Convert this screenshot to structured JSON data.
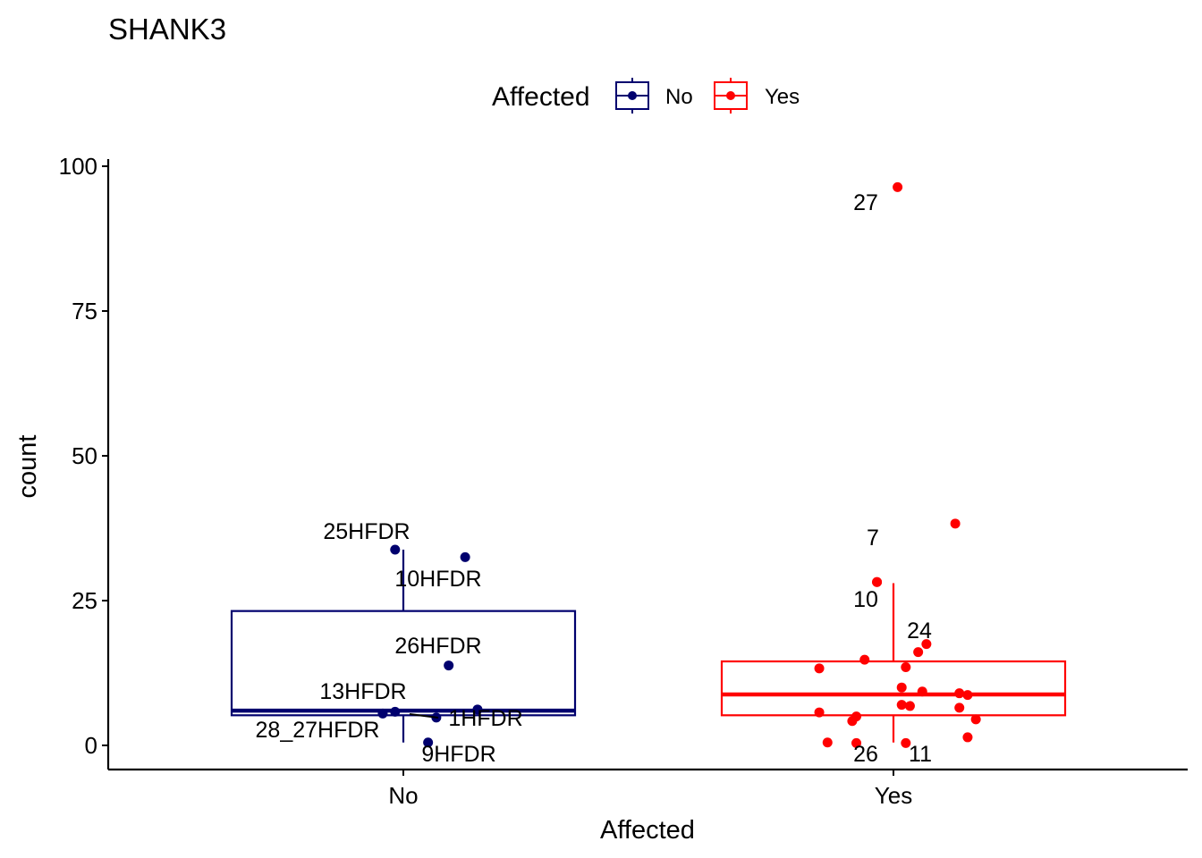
{
  "chart_data": {
    "type": "boxplot",
    "title": "SHANK3",
    "xlabel": "Affected",
    "ylabel": "count",
    "ylim": [
      -4,
      102
    ],
    "yticks": [
      0,
      25,
      50,
      75,
      100
    ],
    "grid": false,
    "legend": {
      "title": "Affected",
      "placement": "top",
      "entries": [
        {
          "label": "No",
          "color": "#00006E"
        },
        {
          "label": "Yes",
          "color": "#FF0000"
        }
      ]
    },
    "categories": [
      "No",
      "Yes"
    ],
    "series": [
      {
        "name": "No",
        "color": "#00006E",
        "box": {
          "whisker_low": 0.5,
          "q1": 5.2,
          "median": 6.0,
          "q3": 23.2,
          "whisker_high": 33.8
        },
        "points": [
          {
            "x": -0.02,
            "y": 33.8,
            "label": "25HFDR"
          },
          {
            "x": 0.15,
            "y": 32.5,
            "label": "10HFDR"
          },
          {
            "x": 0.11,
            "y": 13.8,
            "label": "26HFDR"
          },
          {
            "x": -0.02,
            "y": 5.8,
            "label": "13HFDR"
          },
          {
            "x": 0.18,
            "y": 6.2,
            "label": ""
          },
          {
            "x": 0.08,
            "y": 4.8,
            "label": "1HFDR"
          },
          {
            "x": -0.05,
            "y": 5.5,
            "label": "28_27HFDR"
          },
          {
            "x": 0.06,
            "y": 0.5,
            "label": "9HFDR"
          }
        ]
      },
      {
        "name": "Yes",
        "color": "#FF0000",
        "box": {
          "whisker_low": 0.5,
          "q1": 5.2,
          "median": 8.8,
          "q3": 14.5,
          "whisker_high": 28.0
        },
        "points": [
          {
            "x": 0.01,
            "y": 96.4,
            "label": "27"
          },
          {
            "x": 0.15,
            "y": 38.3,
            "label": ""
          },
          {
            "x": -0.04,
            "y": 28.2,
            "label": "10"
          },
          {
            "x": 0.08,
            "y": 17.5,
            "label": "24"
          },
          {
            "x": 0.06,
            "y": 16.1,
            "label": ""
          },
          {
            "x": -0.07,
            "y": 14.8,
            "label": ""
          },
          {
            "x": 0.03,
            "y": 13.5,
            "label": ""
          },
          {
            "x": -0.18,
            "y": 13.3,
            "label": ""
          },
          {
            "x": 0.02,
            "y": 10.0,
            "label": ""
          },
          {
            "x": 0.07,
            "y": 9.3,
            "label": ""
          },
          {
            "x": 0.16,
            "y": 9.0,
            "label": ""
          },
          {
            "x": 0.18,
            "y": 8.7,
            "label": ""
          },
          {
            "x": 0.02,
            "y": 7.0,
            "label": ""
          },
          {
            "x": 0.04,
            "y": 6.8,
            "label": ""
          },
          {
            "x": 0.16,
            "y": 6.5,
            "label": ""
          },
          {
            "x": -0.18,
            "y": 5.7,
            "label": ""
          },
          {
            "x": -0.09,
            "y": 5.0,
            "label": ""
          },
          {
            "x": -0.1,
            "y": 4.2,
            "label": ""
          },
          {
            "x": 0.2,
            "y": 4.5,
            "label": ""
          },
          {
            "x": 0.18,
            "y": 1.4,
            "label": ""
          },
          {
            "x": -0.16,
            "y": 0.5,
            "label": ""
          },
          {
            "x": -0.09,
            "y": 0.4,
            "label": "26"
          },
          {
            "x": 0.03,
            "y": 0.4,
            "label": "11"
          },
          {
            "x": -0.04,
            "y": 28.2,
            "label": "7"
          }
        ]
      }
    ]
  }
}
